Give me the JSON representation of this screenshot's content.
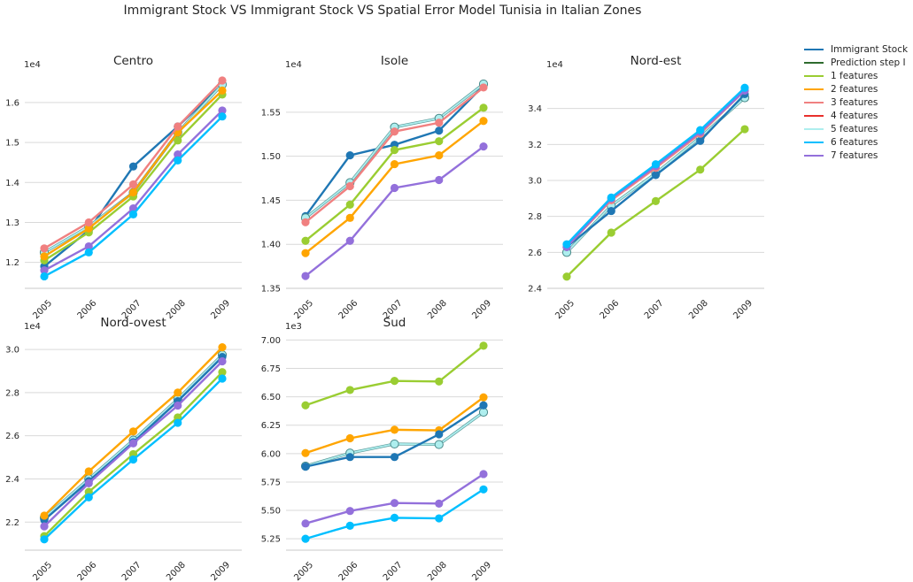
{
  "figure_title": "Immigrant Stock VS Immigrant Stock VS Spatial Error Model Tunisia in Italian Zones",
  "legend": [
    {
      "label": "Immigrant Stock",
      "color": "#1f77b4"
    },
    {
      "label": "Prediction step I",
      "color": "#2e6b2e"
    },
    {
      "label": "1 features",
      "color": "#9acd32"
    },
    {
      "label": "2 features",
      "color": "#ffa500"
    },
    {
      "label": "3 features",
      "color": "#f08080"
    },
    {
      "label": "4 features",
      "color": "#e8302c"
    },
    {
      "label": "5 features",
      "color": "#aeeeee"
    },
    {
      "label": "6 features",
      "color": "#00bfff"
    },
    {
      "label": "7 features",
      "color": "#9370db"
    }
  ],
  "chart_data": [
    {
      "type": "line",
      "title": "Centro",
      "exponent_label": "1e4",
      "x": [
        "2005",
        "2006",
        "2007",
        "2008",
        "2009"
      ],
      "ylim": [
        1.135,
        1.675
      ],
      "yticks": [
        1.2,
        1.3,
        1.4,
        1.5,
        1.6
      ],
      "ytick_labels": [
        "1.2",
        "1.3",
        "1.4",
        "1.5",
        "1.6"
      ],
      "series": [
        {
          "name": "Immigrant Stock",
          "values": [
            1.19,
            1.28,
            1.44,
            1.54,
            1.645
          ]
        },
        {
          "name": "5 features",
          "values": [
            1.225,
            1.29,
            1.375,
            1.525,
            1.645
          ]
        },
        {
          "name": "1 features",
          "values": [
            1.205,
            1.275,
            1.365,
            1.505,
            1.62
          ]
        },
        {
          "name": "2 features",
          "values": [
            1.215,
            1.285,
            1.375,
            1.525,
            1.63
          ]
        },
        {
          "name": "3 features",
          "values": [
            1.235,
            1.3,
            1.395,
            1.54,
            1.655
          ]
        },
        {
          "name": "7 features",
          "values": [
            1.18,
            1.24,
            1.335,
            1.47,
            1.58
          ]
        },
        {
          "name": "6 features",
          "values": [
            1.165,
            1.225,
            1.32,
            1.455,
            1.565
          ]
        }
      ]
    },
    {
      "type": "line",
      "title": "Isole",
      "exponent_label": "1e4",
      "x": [
        "2005",
        "2006",
        "2007",
        "2008",
        "2009"
      ],
      "ylim": [
        1.35,
        1.595
      ],
      "yticks": [
        1.35,
        1.4,
        1.45,
        1.5,
        1.55
      ],
      "ytick_labels": [
        "1.35",
        "1.40",
        "1.45",
        "1.50",
        "1.55"
      ],
      "series": [
        {
          "name": "Immigrant Stock",
          "values": [
            1.432,
            1.501,
            1.513,
            1.529,
            1.58
          ]
        },
        {
          "name": "5 features",
          "values": [
            1.43,
            1.47,
            1.533,
            1.543,
            1.582
          ]
        },
        {
          "name": "3 features",
          "values": [
            1.425,
            1.466,
            1.528,
            1.538,
            1.578
          ]
        },
        {
          "name": "1 features",
          "values": [
            1.404,
            1.445,
            1.507,
            1.517,
            1.555
          ]
        },
        {
          "name": "2 features",
          "values": [
            1.39,
            1.43,
            1.491,
            1.501,
            1.54
          ]
        },
        {
          "name": "7 features",
          "values": [
            1.364,
            1.404,
            1.464,
            1.473,
            1.511
          ]
        }
      ]
    },
    {
      "type": "line",
      "title": "Nord-est",
      "exponent_label": "1e4",
      "x": [
        "2005",
        "2006",
        "2007",
        "2008",
        "2009"
      ],
      "ylim": [
        2.4,
        3.6
      ],
      "yticks": [
        2.4,
        2.6,
        2.8,
        3.0,
        3.2,
        3.4
      ],
      "ytick_labels": [
        "2.4",
        "2.6",
        "2.8",
        "3.0",
        "3.2",
        "3.4"
      ],
      "series": [
        {
          "name": "5 features",
          "values": [
            2.6,
            2.86,
            3.04,
            3.24,
            3.46
          ]
        },
        {
          "name": "Immigrant Stock",
          "values": [
            2.63,
            2.83,
            3.03,
            3.22,
            3.48
          ]
        },
        {
          "name": "3 features",
          "values": [
            2.63,
            2.89,
            3.07,
            3.26,
            3.5
          ]
        },
        {
          "name": "7 features",
          "values": [
            2.63,
            2.9,
            3.08,
            3.27,
            3.5
          ]
        },
        {
          "name": "6 features",
          "values": [
            2.645,
            2.905,
            3.09,
            3.28,
            3.515
          ]
        },
        {
          "name": "1 features",
          "values": [
            2.465,
            2.71,
            2.885,
            3.06,
            3.285
          ]
        }
      ]
    },
    {
      "type": "line",
      "title": "Nord-ovest",
      "exponent_label": "1e4",
      "x": [
        "2005",
        "2006",
        "2007",
        "2008",
        "2009"
      ],
      "ylim": [
        2.07,
        3.07
      ],
      "yticks": [
        2.2,
        2.4,
        2.6,
        2.8,
        3.0
      ],
      "ytick_labels": [
        "2.2",
        "2.4",
        "2.6",
        "2.8",
        "3.0"
      ],
      "series": [
        {
          "name": "5 features",
          "values": [
            2.22,
            2.4,
            2.58,
            2.77,
            2.975
          ]
        },
        {
          "name": "Immigrant Stock",
          "values": [
            2.21,
            2.39,
            2.57,
            2.76,
            2.965
          ]
        },
        {
          "name": "2 features",
          "values": [
            2.23,
            2.435,
            2.62,
            2.8,
            3.01
          ]
        },
        {
          "name": "1 features",
          "values": [
            2.135,
            2.34,
            2.515,
            2.685,
            2.895
          ]
        },
        {
          "name": "7 features",
          "values": [
            2.18,
            2.38,
            2.565,
            2.74,
            2.945
          ]
        },
        {
          "name": "6 features",
          "values": [
            2.12,
            2.315,
            2.49,
            2.66,
            2.865
          ]
        }
      ]
    },
    {
      "type": "line",
      "title": "Sud",
      "exponent_label": "1e3",
      "x": [
        "2005",
        "2006",
        "2007",
        "2008",
        "2009"
      ],
      "ylim": [
        5.15,
        7.05
      ],
      "yticks": [
        5.25,
        5.5,
        5.75,
        6.0,
        6.25,
        6.5,
        6.75,
        7.0
      ],
      "ytick_labels": [
        "5.25",
        "5.50",
        "5.75",
        "6.00",
        "6.25",
        "6.50",
        "6.75",
        "7.00"
      ],
      "series": [
        {
          "name": "1 features",
          "values": [
            6.425,
            6.56,
            6.64,
            6.635,
            6.95
          ]
        },
        {
          "name": "2 features",
          "values": [
            6.005,
            6.135,
            6.21,
            6.205,
            6.495
          ]
        },
        {
          "name": "5 features",
          "values": [
            5.89,
            6.005,
            6.085,
            6.08,
            6.365
          ]
        },
        {
          "name": "Immigrant Stock",
          "values": [
            5.885,
            5.97,
            5.97,
            6.17,
            6.425
          ]
        },
        {
          "name": "7 features",
          "values": [
            5.385,
            5.495,
            5.565,
            5.56,
            5.82
          ]
        },
        {
          "name": "6 features",
          "values": [
            5.25,
            5.365,
            5.435,
            5.43,
            5.685
          ]
        }
      ]
    }
  ]
}
